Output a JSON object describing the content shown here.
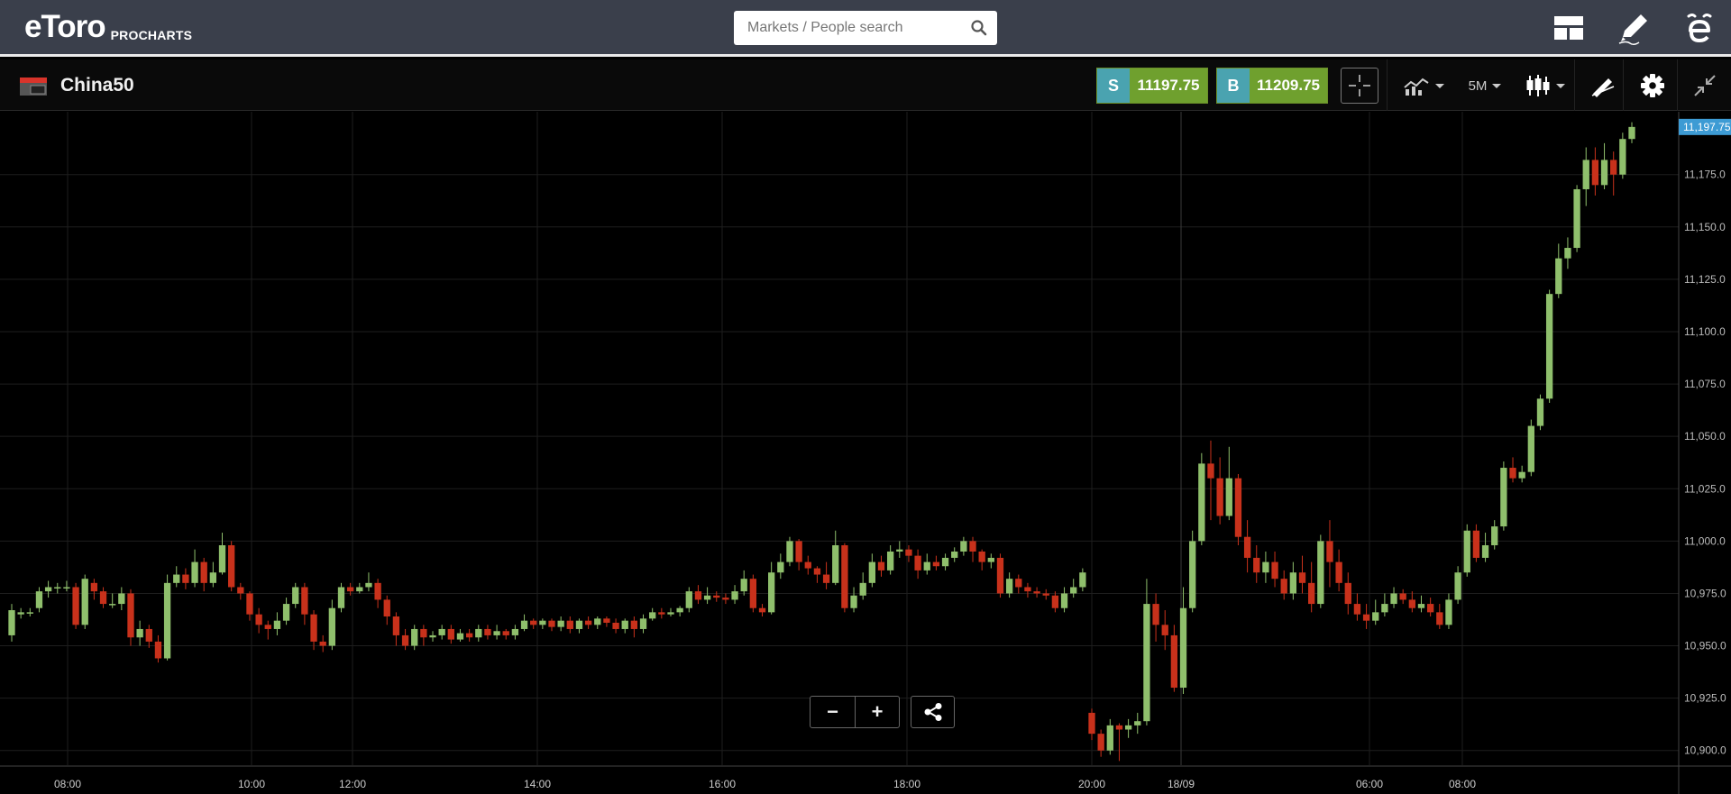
{
  "header": {
    "logo_word": "eToro",
    "logo_sub": "PROCHARTS",
    "search_placeholder": "Markets / People search",
    "icons": [
      "layout-icon",
      "pencil-icon",
      "etoro-e-icon"
    ]
  },
  "instrument": {
    "name": "China50",
    "sell_letter": "S",
    "sell_price": "11197.75",
    "buy_letter": "B",
    "buy_price": "11209.75",
    "timeframe": "5M"
  },
  "colors": {
    "up": "#8fbf6c",
    "down": "#c8311b",
    "grid": "#1e1e1e",
    "last_price_bg": "#3d9bd4",
    "sell_tag": "#4aa3b0",
    "buy_value": "#6fa02e"
  },
  "chart_data": {
    "type": "candlestick",
    "title": "",
    "ylim": [
      10893,
      11205
    ],
    "y_ticks": [
      10900,
      10925,
      10950,
      10975,
      11000,
      11025,
      11050,
      11075,
      11100,
      11125,
      11150,
      11175
    ],
    "y_tick_labels": [
      "10,900.0",
      "10,925.0",
      "10,950.0",
      "10,975.0",
      "11,000.0",
      "11,025.0",
      "11,050.0",
      "11,075.0",
      "11,100.0",
      "11,125.0",
      "11,150.0",
      "11,175.0"
    ],
    "x_ticks": [
      "08:00",
      "10:00",
      "12:00",
      "14:00",
      "16:00",
      "18:00",
      "20:00",
      "18/09",
      "06:00",
      "08:00"
    ],
    "last_price": 11197.75,
    "last_price_label": "11,197.75",
    "candles": [
      [
        10955,
        10967,
        10952,
        10970
      ],
      [
        10965,
        10966,
        10963,
        10968
      ],
      [
        10966,
        10966,
        10964,
        10968
      ],
      [
        10968,
        10976,
        10966,
        10978
      ],
      [
        10976,
        10978,
        10973,
        10981
      ],
      [
        10978,
        10978,
        10975,
        10980
      ],
      [
        10978,
        10978,
        10976,
        10981
      ],
      [
        10978,
        10960,
        10958,
        10980
      ],
      [
        10960,
        10982,
        10958,
        10984
      ],
      [
        10980,
        10976,
        10972,
        10982
      ],
      [
        10976,
        10970,
        10968,
        10978
      ],
      [
        10970,
        10970,
        10968,
        10975
      ],
      [
        10970,
        10975,
        10967,
        10978
      ],
      [
        10975,
        10954,
        10950,
        10977
      ],
      [
        10954,
        10958,
        10950,
        10962
      ],
      [
        10958,
        10952,
        10949,
        10960
      ],
      [
        10952,
        10944,
        10942,
        10955
      ],
      [
        10944,
        10980,
        10943,
        10984
      ],
      [
        10980,
        10984,
        10978,
        10988
      ],
      [
        10984,
        10980,
        10977,
        10987
      ],
      [
        10980,
        10990,
        10978,
        10996
      ],
      [
        10990,
        10980,
        10976,
        10992
      ],
      [
        10980,
        10985,
        10978,
        10990
      ],
      [
        10985,
        10998,
        10984,
        11004
      ],
      [
        10998,
        10978,
        10976,
        11000
      ],
      [
        10978,
        10975,
        10972,
        10980
      ],
      [
        10975,
        10965,
        10962,
        10976
      ],
      [
        10965,
        10960,
        10956,
        10968
      ],
      [
        10960,
        10958,
        10953,
        10962
      ],
      [
        10958,
        10962,
        10955,
        10966
      ],
      [
        10962,
        10970,
        10960,
        10973
      ],
      [
        10970,
        10978,
        10968,
        10980
      ],
      [
        10978,
        10965,
        10960,
        10980
      ],
      [
        10965,
        10952,
        10948,
        10967
      ],
      [
        10952,
        10950,
        10947,
        10955
      ],
      [
        10950,
        10968,
        10948,
        10972
      ],
      [
        10968,
        10978,
        10966,
        10980
      ],
      [
        10978,
        10976,
        10974,
        10980
      ],
      [
        10976,
        10978,
        10975,
        10980
      ],
      [
        10978,
        10980,
        10976,
        10985
      ],
      [
        10980,
        10972,
        10968,
        10982
      ],
      [
        10972,
        10964,
        10960,
        10974
      ],
      [
        10964,
        10955,
        10950,
        10966
      ],
      [
        10955,
        10950,
        10948,
        10958
      ],
      [
        10950,
        10958,
        10948,
        10960
      ],
      [
        10958,
        10954,
        10950,
        10960
      ],
      [
        10954,
        10955,
        10952,
        10957
      ],
      [
        10955,
        10958,
        10953,
        10960
      ],
      [
        10958,
        10953,
        10951,
        10960
      ],
      [
        10953,
        10956,
        10952,
        10958
      ],
      [
        10956,
        10954,
        10952,
        10958
      ],
      [
        10954,
        10958,
        10952,
        10960
      ],
      [
        10958,
        10955,
        10953,
        10960
      ],
      [
        10955,
        10957,
        10953,
        10960
      ],
      [
        10957,
        10955,
        10953,
        10958
      ],
      [
        10955,
        10958,
        10953,
        10960
      ],
      [
        10958,
        10962,
        10957,
        10965
      ],
      [
        10962,
        10960,
        10958,
        10963
      ],
      [
        10960,
        10962,
        10958,
        10963
      ],
      [
        10962,
        10959,
        10957,
        10963
      ],
      [
        10959,
        10962,
        10957,
        10964
      ],
      [
        10962,
        10958,
        10956,
        10964
      ],
      [
        10958,
        10962,
        10956,
        10963
      ],
      [
        10962,
        10960,
        10958,
        10964
      ],
      [
        10960,
        10963,
        10958,
        10964
      ],
      [
        10963,
        10961,
        10959,
        10964
      ],
      [
        10961,
        10958,
        10956,
        10963
      ],
      [
        10958,
        10962,
        10956,
        10963
      ],
      [
        10962,
        10958,
        10954,
        10964
      ],
      [
        10958,
        10963,
        10956,
        10965
      ],
      [
        10963,
        10966,
        10962,
        10968
      ],
      [
        10966,
        10965,
        10963,
        10968
      ],
      [
        10965,
        10966,
        10964,
        10968
      ],
      [
        10966,
        10968,
        10964,
        10969
      ],
      [
        10968,
        10976,
        10966,
        10978
      ],
      [
        10976,
        10972,
        10970,
        10979
      ],
      [
        10972,
        10974,
        10970,
        10978
      ],
      [
        10974,
        10973,
        10971,
        10976
      ],
      [
        10973,
        10972,
        10970,
        10975
      ],
      [
        10972,
        10976,
        10970,
        10979
      ],
      [
        10976,
        10982,
        10974,
        10986
      ],
      [
        10982,
        10968,
        10966,
        10984
      ],
      [
        10968,
        10966,
        10964,
        10970
      ],
      [
        10966,
        10985,
        10965,
        10990
      ],
      [
        10985,
        10990,
        10982,
        10994
      ],
      [
        10990,
        11000,
        10988,
        11002
      ],
      [
        11000,
        10990,
        10986,
        11001
      ],
      [
        10990,
        10987,
        10984,
        10993
      ],
      [
        10987,
        10984,
        10980,
        10988
      ],
      [
        10984,
        10980,
        10977,
        10990
      ],
      [
        10980,
        10998,
        10979,
        11005
      ],
      [
        10998,
        10968,
        10966,
        10999
      ],
      [
        10968,
        10974,
        10966,
        10978
      ],
      [
        10974,
        10980,
        10972,
        10985
      ],
      [
        10980,
        10990,
        10978,
        10994
      ],
      [
        10990,
        10986,
        10983,
        10993
      ],
      [
        10986,
        10995,
        10984,
        10998
      ],
      [
        10995,
        10996,
        10992,
        11000
      ],
      [
        10996,
        10993,
        10990,
        10998
      ],
      [
        10993,
        10986,
        10982,
        10996
      ],
      [
        10986,
        10990,
        10984,
        10994
      ],
      [
        10990,
        10988,
        10986,
        10993
      ],
      [
        10988,
        10992,
        10986,
        10994
      ],
      [
        10992,
        10995,
        10990,
        10997
      ],
      [
        10995,
        11000,
        10993,
        11002
      ],
      [
        11000,
        10995,
        10990,
        11002
      ],
      [
        10995,
        10990,
        10986,
        10996
      ],
      [
        10990,
        10992,
        10987,
        10994
      ],
      [
        10992,
        10975,
        10973,
        10994
      ],
      [
        10975,
        10982,
        10973,
        10985
      ],
      [
        10982,
        10978,
        10975,
        10984
      ],
      [
        10978,
        10976,
        10973,
        10980
      ],
      [
        10976,
        10975,
        10973,
        10978
      ],
      [
        10975,
        10974,
        10972,
        10977
      ],
      [
        10974,
        10968,
        10966,
        10976
      ],
      [
        10968,
        10975,
        10966,
        10978
      ],
      [
        10975,
        10978,
        10973,
        10982
      ],
      [
        10978,
        10985,
        10976,
        10987
      ],
      [
        10918,
        10908,
        10905,
        10920
      ],
      [
        10908,
        10900,
        10897,
        10910
      ],
      [
        10900,
        10912,
        10898,
        10915
      ],
      [
        10912,
        10910,
        10895,
        10913
      ],
      [
        10910,
        10912,
        10906,
        10915
      ],
      [
        10912,
        10914,
        10908,
        10918
      ],
      [
        10914,
        10970,
        10912,
        10982
      ],
      [
        10970,
        10960,
        10952,
        10975
      ],
      [
        10960,
        10955,
        10948,
        10967
      ],
      [
        10955,
        10930,
        10928,
        10960
      ],
      [
        10930,
        10968,
        10927,
        10978
      ],
      [
        10968,
        11000,
        10966,
        11005
      ],
      [
        11000,
        11037,
        10998,
        11042
      ],
      [
        11037,
        11030,
        11010,
        11048
      ],
      [
        11030,
        11012,
        11008,
        11040
      ],
      [
        11012,
        11030,
        11010,
        11045
      ],
      [
        11030,
        11002,
        10998,
        11032
      ],
      [
        11002,
        10992,
        10985,
        11010
      ],
      [
        10992,
        10985,
        10980,
        10998
      ],
      [
        10985,
        10990,
        10980,
        10995
      ],
      [
        10990,
        10982,
        10978,
        10995
      ],
      [
        10982,
        10975,
        10972,
        10986
      ],
      [
        10975,
        10985,
        10972,
        10990
      ],
      [
        10985,
        10980,
        10975,
        10993
      ],
      [
        10980,
        10970,
        10966,
        10990
      ],
      [
        10970,
        11000,
        10968,
        11003
      ],
      [
        11000,
        10990,
        10978,
        11010
      ],
      [
        10990,
        10980,
        10976,
        10996
      ],
      [
        10980,
        10970,
        10965,
        10985
      ],
      [
        10970,
        10965,
        10962,
        10975
      ],
      [
        10965,
        10962,
        10958,
        10970
      ],
      [
        10962,
        10966,
        10960,
        10972
      ],
      [
        10966,
        10970,
        10964,
        10975
      ],
      [
        10970,
        10975,
        10968,
        10978
      ],
      [
        10975,
        10972,
        10970,
        10977
      ],
      [
        10972,
        10968,
        10966,
        10976
      ],
      [
        10968,
        10970,
        10966,
        10974
      ],
      [
        10970,
        10966,
        10964,
        10973
      ],
      [
        10966,
        10960,
        10958,
        10970
      ],
      [
        10960,
        10972,
        10958,
        10975
      ],
      [
        10972,
        10985,
        10970,
        10988
      ],
      [
        10985,
        11005,
        10983,
        11008
      ],
      [
        11005,
        10992,
        10990,
        11008
      ],
      [
        10992,
        10998,
        10990,
        11004
      ],
      [
        10998,
        11007,
        10996,
        11010
      ],
      [
        11007,
        11035,
        11005,
        11038
      ],
      [
        11035,
        11030,
        11028,
        11040
      ],
      [
        11030,
        11033,
        11028,
        11036
      ],
      [
        11033,
        11055,
        11031,
        11058
      ],
      [
        11055,
        11068,
        11053,
        11070
      ],
      [
        11068,
        11118,
        11066,
        11120
      ],
      [
        11118,
        11135,
        11116,
        11142
      ],
      [
        11135,
        11140,
        11130,
        11145
      ],
      [
        11140,
        11168,
        11138,
        11170
      ],
      [
        11168,
        11182,
        11160,
        11188
      ],
      [
        11182,
        11170,
        11165,
        11188
      ],
      [
        11170,
        11182,
        11168,
        11190
      ],
      [
        11182,
        11175,
        11165,
        11186
      ],
      [
        11175,
        11192,
        11173,
        11195
      ],
      [
        11192,
        11197.75,
        11190,
        11200
      ]
    ]
  }
}
